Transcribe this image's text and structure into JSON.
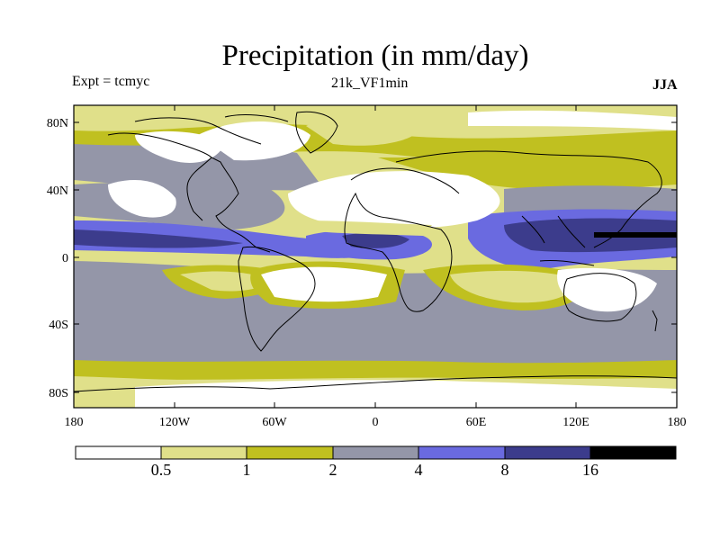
{
  "title": "Precipitation (in mm/day)",
  "experiment": "Expt = tcmyc",
  "run": "21k_VF1min",
  "season": "JJA",
  "map": {
    "lat_ticks": [
      "80N",
      "40N",
      "0",
      "40S",
      "80S"
    ],
    "lon_ticks": [
      "180",
      "120W",
      "60W",
      "0",
      "60E",
      "120E",
      "180"
    ]
  },
  "colorbar": {
    "labels": [
      "0.5",
      "1",
      "2",
      "4",
      "8",
      "16"
    ],
    "colors": [
      "#ffffff",
      "#e0e08a",
      "#c0c020",
      "#9496a8",
      "#6a6ae0",
      "#3c3c8c",
      "#000000"
    ]
  }
}
